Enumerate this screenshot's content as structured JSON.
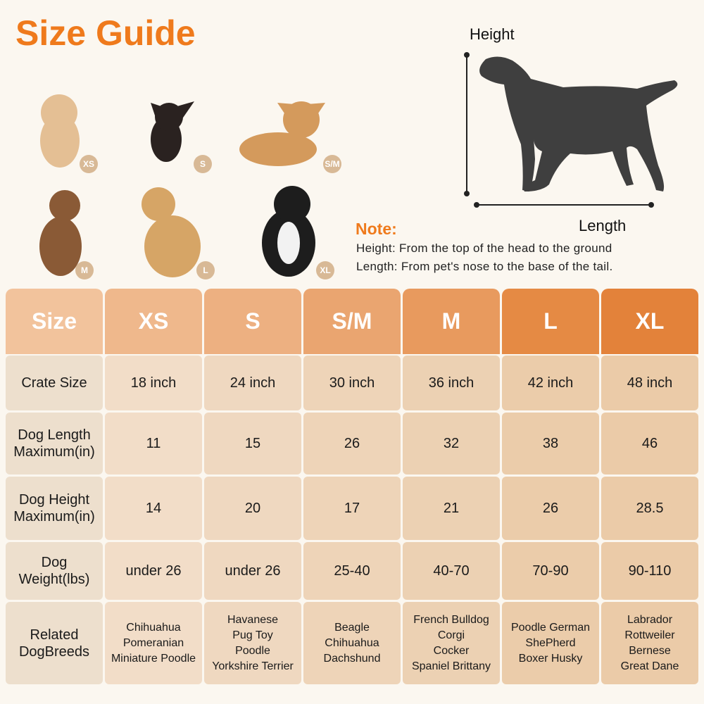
{
  "title": "Size Guide",
  "dogs": [
    {
      "size": "XS"
    },
    {
      "size": "S"
    },
    {
      "size": "S/M"
    },
    {
      "size": "M"
    },
    {
      "size": "L"
    },
    {
      "size": "XL"
    }
  ],
  "diagram": {
    "height_label": "Height",
    "length_label": "Length"
  },
  "note": {
    "title": "Note:",
    "lines": [
      "Height: From the top of the head to the ground",
      "Length: From pet's nose to the base of the tail."
    ]
  },
  "table": {
    "header": [
      "Size",
      "XS",
      "S",
      "S/M",
      "M",
      "L",
      "XL"
    ],
    "rows": [
      {
        "label": "Crate Size",
        "cells": [
          "18 inch",
          "24 inch",
          "30 inch",
          "36 inch",
          "42 inch",
          "48 inch"
        ]
      },
      {
        "label": "Dog Length Maximum(in)",
        "cells": [
          "11",
          "15",
          "26",
          "32",
          "38",
          "46"
        ]
      },
      {
        "label": "Dog Height Maximum(in)",
        "cells": [
          "14",
          "20",
          "17",
          "21",
          "26",
          "28.5"
        ]
      },
      {
        "label": "Dog Weight(lbs)",
        "cells": [
          "under 26",
          "under 26",
          "25-40",
          "40-70",
          "70-90",
          "90-110"
        ]
      },
      {
        "label": "Related DogBreeds",
        "cells": [
          [
            "Chihuahua",
            "Pomeranian",
            "Miniature Poodle"
          ],
          [
            "Havanese",
            "Pug Toy",
            "Poodle",
            "Yorkshire Terrier"
          ],
          [
            "Beagle",
            "Chihuahua",
            "Dachshund"
          ],
          [
            "French Bulldog",
            "Corgi",
            "Cocker",
            "Spaniel Brittany"
          ],
          [
            "Poodle German",
            "ShePherd",
            "Boxer Husky"
          ],
          [
            "Labrador",
            "Rottweiler",
            "Bernese",
            "Great Dane"
          ]
        ]
      }
    ]
  }
}
